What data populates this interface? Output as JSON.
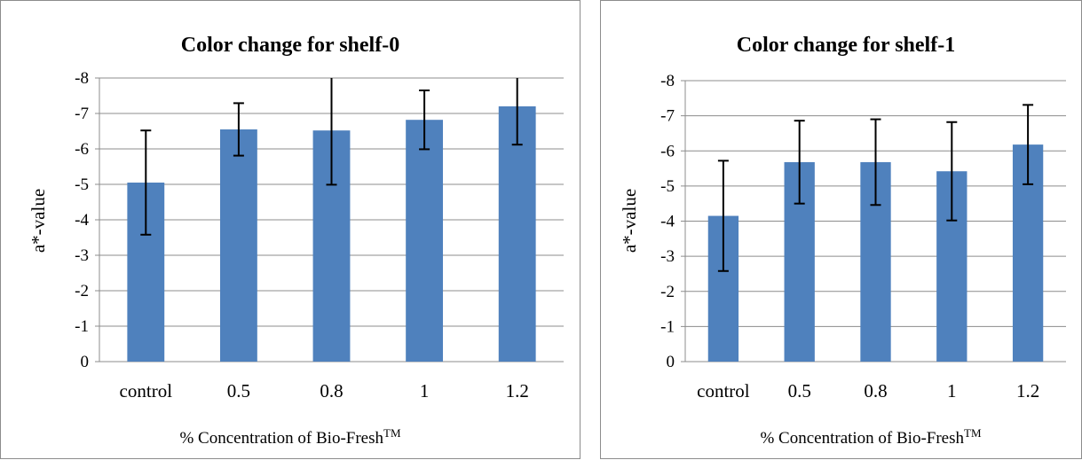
{
  "chart_data": [
    {
      "type": "bar",
      "title": "Color change for shelf-0",
      "xlabel": "% Concentration of Bio-Fresh",
      "xlabel_superscript": "TM",
      "ylabel": "a*-value",
      "categories": [
        "control",
        "0.5",
        "0.8",
        "1",
        "1.2"
      ],
      "values": [
        -5.05,
        -6.55,
        -6.52,
        -6.82,
        -7.2
      ],
      "error": [
        1.47,
        0.74,
        1.53,
        0.83,
        1.08
      ],
      "ylim": [
        0,
        -8
      ],
      "y_ticks": [
        0,
        -1,
        -2,
        -3,
        -4,
        -5,
        -6,
        -7,
        -8
      ],
      "y_tick_labels": [
        "0",
        "-1",
        "-2",
        "-3",
        "-4",
        "-5",
        "-6",
        "-7",
        "-8"
      ],
      "grid": true,
      "bar_color": "#4f81bd",
      "error_color": "#000000"
    },
    {
      "type": "bar",
      "title": "Color change for shelf-1",
      "xlabel": "% Concentration of Bio-Fresh",
      "xlabel_superscript": "TM",
      "ylabel": "a*-value",
      "categories": [
        "control",
        "0.5",
        "0.8",
        "1",
        "1.2"
      ],
      "values": [
        -4.15,
        -5.68,
        -5.68,
        -5.42,
        -6.18
      ],
      "error": [
        1.57,
        1.18,
        1.22,
        1.4,
        1.13
      ],
      "ylim": [
        0,
        -8
      ],
      "y_ticks": [
        0,
        -1,
        -2,
        -3,
        -4,
        -5,
        -6,
        -7,
        -8
      ],
      "y_tick_labels": [
        "0",
        "-1",
        "-2",
        "-3",
        "-4",
        "-5",
        "-6",
        "-7",
        "-8"
      ],
      "grid": true,
      "bar_color": "#4f81bd",
      "error_color": "#000000"
    }
  ]
}
